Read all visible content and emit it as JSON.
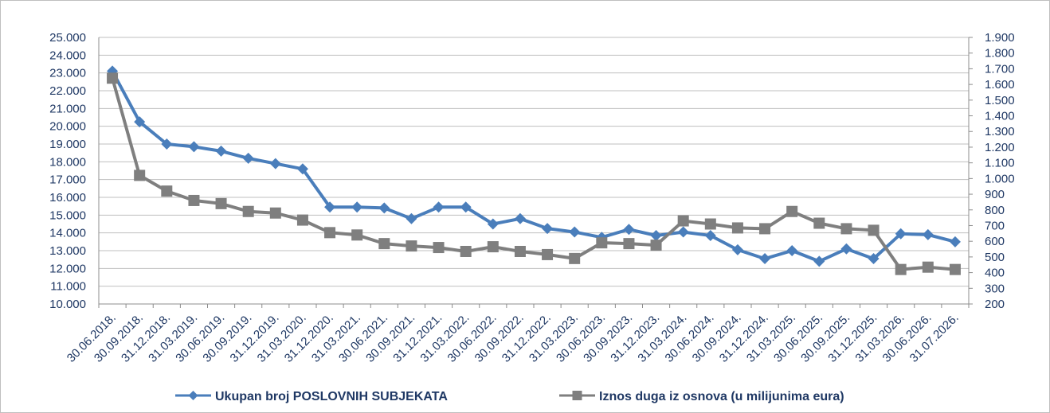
{
  "chart_data": {
    "type": "line",
    "title": "",
    "categories": [
      "30.06.2018.",
      "30.09.2018.",
      "31.12.2018.",
      "31.03.2019.",
      "30.06.2019.",
      "30.09.2019.",
      "31.12.2019.",
      "31.03.2020.",
      "31.12.2020.",
      "31.03.2021.",
      "30.06.2021.",
      "30.09.2021.",
      "31.12.2021.",
      "31.03.2022.",
      "30.06.2022.",
      "30.09.2022.",
      "31.12.2022.",
      "31.03.2023.",
      "30.06.2023.",
      "30.09.2023.",
      "31.12.2023.",
      "31.03.2024.",
      "30.06.2024.",
      "30.09.2024.",
      "31.12.2024.",
      "31.03.2025.",
      "30.06.2025.",
      "30.09.2025.",
      "31.12.2025.",
      "31.03.2026.",
      "30.06.2026.",
      "31.07.2026."
    ],
    "y_left": {
      "ylim": [
        10000,
        25000
      ],
      "ticks": [
        "10.000",
        "11.000",
        "12.000",
        "13.000",
        "14.000",
        "15.000",
        "16.000",
        "17.000",
        "18.000",
        "19.000",
        "20.000",
        "21.000",
        "22.000",
        "23.000",
        "24.000",
        "25.000"
      ]
    },
    "y_right": {
      "ylim": [
        200,
        1900
      ],
      "ticks": [
        "200",
        "300",
        "400",
        "500",
        "600",
        "700",
        "800",
        "900",
        "1.000",
        "1.100",
        "1.200",
        "1.300",
        "1.400",
        "1.500",
        "1.600",
        "1.700",
        "1.800",
        "1.900"
      ]
    },
    "grid": true,
    "legend_position": "bottom",
    "series": [
      {
        "name": "Ukupan broj POSLOVNIH SUBJEKATA",
        "axis": "left",
        "color": "#4a7ebb",
        "marker": "diamond",
        "values": [
          23100,
          20250,
          19000,
          18850,
          18600,
          18200,
          17900,
          17600,
          15450,
          15450,
          15400,
          14800,
          15450,
          15450,
          14500,
          14800,
          14250,
          14050,
          13750,
          14200,
          13850,
          14050,
          13850,
          13050,
          12550,
          13000,
          12400,
          13100,
          12550,
          13950,
          13900,
          13500
        ]
      },
      {
        "name": "Iznos duga iz osnova (u milijunima eura)",
        "axis": "right",
        "color": "#7f7f7f",
        "marker": "square",
        "values": [
          1640,
          1020,
          920,
          860,
          840,
          790,
          780,
          735,
          655,
          640,
          585,
          570,
          560,
          535,
          565,
          535,
          515,
          490,
          590,
          585,
          575,
          730,
          710,
          685,
          680,
          790,
          715,
          680,
          670,
          420,
          435,
          420
        ]
      }
    ]
  }
}
